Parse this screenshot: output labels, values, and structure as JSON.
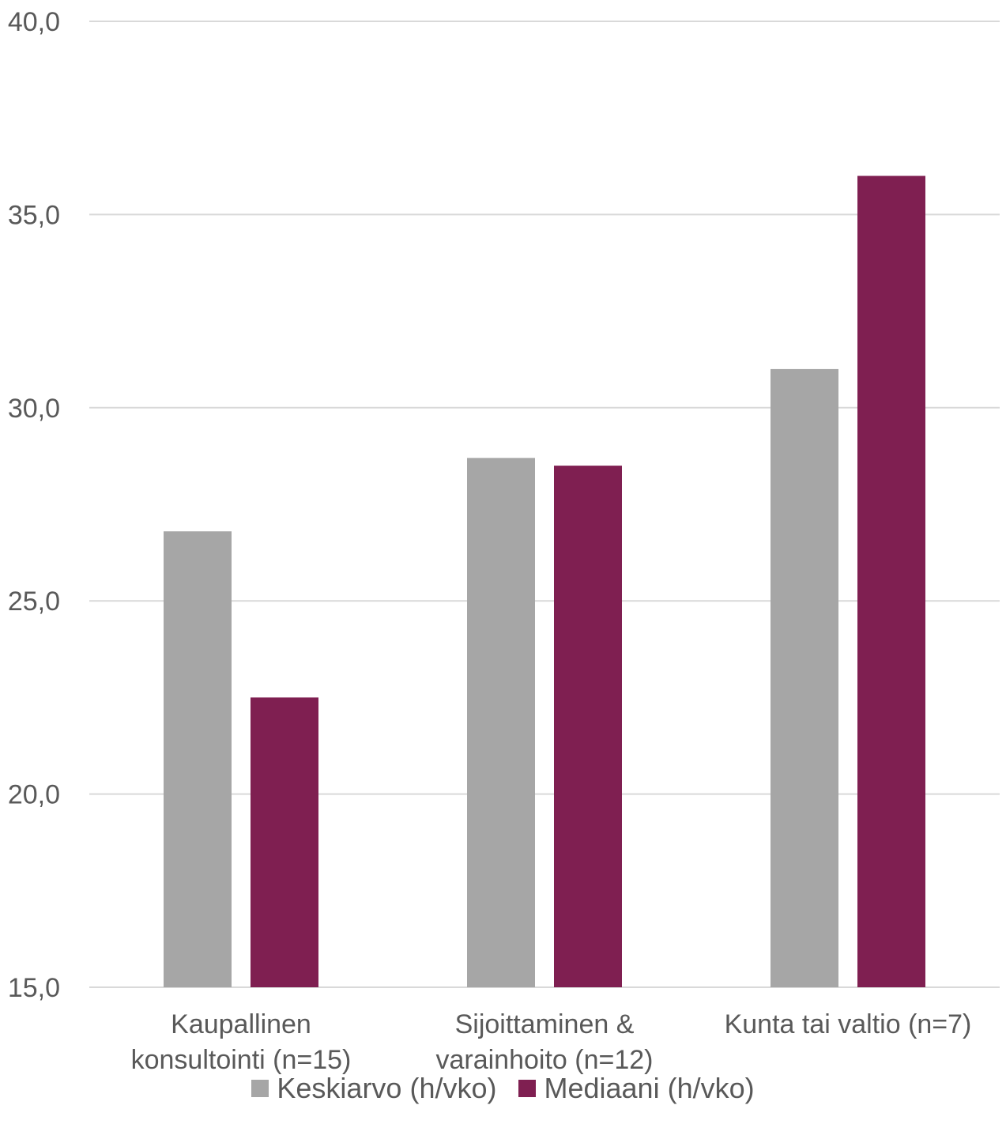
{
  "chart_data": {
    "type": "bar",
    "categories": [
      [
        "Kaupallinen",
        "konsultointi (n=15)"
      ],
      [
        "Sijoittaminen &",
        "varainhoito (n=12)"
      ],
      [
        "Kunta tai valtio (n=7)"
      ]
    ],
    "series": [
      {
        "name": "Keskiarvo (h/vko)",
        "color": "#A6A6A6",
        "values": [
          26.8,
          28.7,
          31.0
        ]
      },
      {
        "name": "Mediaani (h/vko)",
        "color": "#7F1F51",
        "values": [
          22.5,
          28.5,
          36.0
        ]
      }
    ],
    "ylim": [
      15,
      40
    ],
    "yticks": [
      "15,0",
      "20,0",
      "25,0",
      "30,0",
      "35,0",
      "40,0"
    ],
    "ytick_values": [
      15,
      20,
      25,
      30,
      35,
      40
    ],
    "grid": true,
    "legend_position": "bottom"
  }
}
